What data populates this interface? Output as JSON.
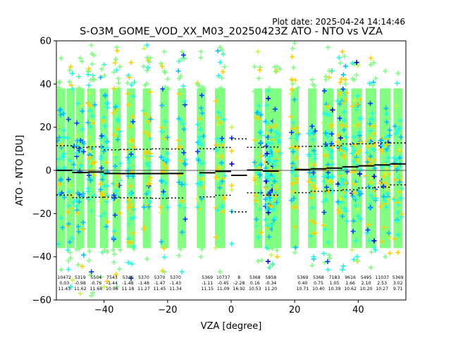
{
  "chart_data": {
    "type": "scatter",
    "plot_date": "Plot date: 2025-04-24 14:14:46",
    "title": "S-O3M_GOME_VOD_XX_M03_20250423Z ATO - NTO vs VZA",
    "xlabel": "VZA [degree]",
    "ylabel": "ATO - NTO [DU]",
    "xlim": [
      -55,
      55
    ],
    "ylim": [
      -60,
      60
    ],
    "xticks": [
      -40,
      -20,
      0,
      20,
      40
    ],
    "yticks": [
      -60,
      -40,
      -20,
      0,
      20,
      40,
      60
    ],
    "xtick_labels": [
      "−40",
      "−20",
      "0",
      "20",
      "40"
    ],
    "ytick_labels": [
      "−60",
      "−40",
      "−20",
      "0",
      "20",
      "40",
      "60"
    ],
    "marker": "+",
    "marker_colors": [
      "#80ff80",
      "#19ffe5",
      "#00c0ff",
      "#ffd000",
      "#c0ff40",
      "#0040ff",
      "#0000d0",
      "#40ffb0",
      "#ffb000"
    ],
    "columns": [
      {
        "vza": -53.5,
        "width": 2.6,
        "top": 52,
        "bottom": -46,
        "mix": [
          0.7,
          0.1,
          0.12,
          0.02,
          0.02,
          0.02,
          0.0,
          0.02,
          0.0
        ]
      },
      {
        "vza": -50.5,
        "width": 2.6,
        "top": 48,
        "bottom": -54,
        "mix": [
          0.7,
          0.1,
          0.06,
          0.05,
          0.03,
          0.04,
          0.0,
          0.02,
          0.0
        ]
      },
      {
        "vza": -47.5,
        "width": 2.6,
        "top": 52,
        "bottom": -57,
        "mix": [
          0.62,
          0.1,
          0.08,
          0.06,
          0.03,
          0.08,
          0.01,
          0.02,
          0.0
        ]
      },
      {
        "vza": -44.0,
        "width": 2.6,
        "top": 58,
        "bottom": -58,
        "mix": [
          0.62,
          0.1,
          0.08,
          0.12,
          0.04,
          0.02,
          0.0,
          0.02,
          0.0
        ]
      },
      {
        "vza": -40.0,
        "width": 2.6,
        "top": 49,
        "bottom": -54,
        "mix": [
          0.62,
          0.12,
          0.06,
          0.12,
          0.03,
          0.02,
          0.0,
          0.03,
          0.0
        ]
      },
      {
        "vza": -36.0,
        "width": 2.6,
        "top": 57,
        "bottom": -54,
        "mix": [
          0.62,
          0.12,
          0.05,
          0.14,
          0.03,
          0.02,
          0.0,
          0.02,
          0.0
        ]
      },
      {
        "vza": -31.5,
        "width": 2.6,
        "top": 50,
        "bottom": -50,
        "mix": [
          0.62,
          0.1,
          0.06,
          0.15,
          0.02,
          0.03,
          0.0,
          0.02,
          0.0
        ]
      },
      {
        "vza": -26.5,
        "width": 2.6,
        "top": 58,
        "bottom": -41,
        "mix": [
          0.64,
          0.08,
          0.06,
          0.16,
          0.02,
          0.02,
          0.0,
          0.02,
          0.0
        ]
      },
      {
        "vza": -21.0,
        "width": 2.6,
        "top": 55,
        "bottom": -47,
        "mix": [
          0.68,
          0.1,
          0.06,
          0.1,
          0.02,
          0.02,
          0.0,
          0.02,
          0.0
        ]
      },
      {
        "vza": -15.5,
        "width": 2.6,
        "top": 55,
        "bottom": -47,
        "mix": [
          0.68,
          0.1,
          0.06,
          0.1,
          0.02,
          0.02,
          0.0,
          0.02,
          0.0
        ]
      },
      {
        "vza": -9.5,
        "width": 2.6,
        "top": 55,
        "bottom": -40,
        "mix": [
          0.72,
          0.1,
          0.08,
          0.05,
          0.02,
          0.01,
          0.0,
          0.02,
          0.0
        ]
      },
      {
        "vza": -3.5,
        "width": 3.2,
        "top": 57,
        "bottom": -47,
        "mix": [
          0.62,
          0.1,
          0.06,
          0.14,
          0.04,
          0.01,
          0.0,
          0.03,
          0.0
        ]
      },
      {
        "vza": 8.5,
        "width": 2.6,
        "top": 55,
        "bottom": -42,
        "mix": [
          0.62,
          0.12,
          0.08,
          0.13,
          0.02,
          0.01,
          0.0,
          0.02,
          0.0
        ]
      },
      {
        "vza": 12.0,
        "width": 2.8,
        "top": 38,
        "bottom": -45,
        "mix": [
          0.3,
          0.3,
          0.12,
          0.1,
          0.03,
          0.06,
          0.05,
          0.04,
          0.0
        ]
      },
      {
        "vza": 14.5,
        "width": 2.6,
        "top": 48,
        "bottom": -40,
        "mix": [
          0.68,
          0.1,
          0.06,
          0.1,
          0.02,
          0.02,
          0.0,
          0.02,
          0.0
        ]
      },
      {
        "vza": 20.0,
        "width": 2.6,
        "top": 59,
        "bottom": -38,
        "mix": [
          0.62,
          0.1,
          0.05,
          0.17,
          0.03,
          0.01,
          0.0,
          0.02,
          0.0
        ]
      },
      {
        "vza": 25.5,
        "width": 2.6,
        "top": 42,
        "bottom": -44,
        "mix": [
          0.62,
          0.12,
          0.08,
          0.12,
          0.02,
          0.02,
          0.0,
          0.02,
          0.0
        ]
      },
      {
        "vza": 30.5,
        "width": 3.4,
        "top": 57,
        "bottom": -46,
        "mix": [
          0.4,
          0.18,
          0.1,
          0.2,
          0.03,
          0.05,
          0.02,
          0.02,
          0.0
        ]
      },
      {
        "vza": 35.0,
        "width": 3.4,
        "top": 55,
        "bottom": -46,
        "mix": [
          0.4,
          0.2,
          0.1,
          0.18,
          0.03,
          0.05,
          0.02,
          0.02,
          0.0
        ]
      },
      {
        "vza": 39.5,
        "width": 3.4,
        "top": 50,
        "bottom": -42,
        "mix": [
          0.42,
          0.2,
          0.1,
          0.16,
          0.03,
          0.05,
          0.02,
          0.02,
          0.0
        ]
      },
      {
        "vza": 44.0,
        "width": 3.4,
        "top": 52,
        "bottom": -45,
        "mix": [
          0.42,
          0.2,
          0.1,
          0.16,
          0.04,
          0.04,
          0.02,
          0.02,
          0.0
        ]
      },
      {
        "vza": 48.5,
        "width": 3.4,
        "top": 46,
        "bottom": -40,
        "mix": [
          0.46,
          0.18,
          0.1,
          0.16,
          0.04,
          0.03,
          0.01,
          0.02,
          0.0
        ]
      },
      {
        "vza": 52.5,
        "width": 2.8,
        "top": 45,
        "bottom": -38,
        "mix": [
          0.46,
          0.2,
          0.1,
          0.16,
          0.04,
          0.02,
          0.0,
          0.02,
          0.0
        ]
      }
    ],
    "isolated_points": [
      {
        "x": 0.2,
        "y": 20,
        "color": "#c0ff40"
      },
      {
        "x": 0.2,
        "y": 15,
        "color": "#0040ff"
      },
      {
        "x": 0.2,
        "y": 9,
        "color": "#ffd000"
      },
      {
        "x": 0.2,
        "y": 3,
        "color": "#0000d0"
      },
      {
        "x": 0.2,
        "y": -7,
        "color": "#ffd000"
      },
      {
        "x": 0.2,
        "y": -9,
        "color": "#c0ff40"
      },
      {
        "x": 0.2,
        "y": -19,
        "color": "#00c0ff"
      },
      {
        "x": 0.2,
        "y": -34,
        "color": "#19ffe5"
      }
    ],
    "bins": [
      {
        "x0": -55,
        "x1": -50,
        "count": 10472,
        "mean": 0.03,
        "std": 11.43
      },
      {
        "x0": -50,
        "x1": -45,
        "count": 5319,
        "mean": -0.98,
        "std": 11.62
      },
      {
        "x0": -45,
        "x1": -40,
        "count": 5504,
        "mean": -0.76,
        "std": 11.68
      },
      {
        "x0": -40,
        "x1": -35,
        "count": 7543,
        "mean": -1.44,
        "std": 10.96
      },
      {
        "x0": -35,
        "x1": -30,
        "count": 5346,
        "mean": -1.48,
        "std": 11.18
      },
      {
        "x0": -30,
        "x1": -25,
        "count": 5370,
        "mean": -1.48,
        "std": 11.27
      },
      {
        "x0": -25,
        "x1": -20,
        "count": 5370,
        "mean": -1.47,
        "std": 11.45
      },
      {
        "x0": -20,
        "x1": -15,
        "count": 5370,
        "mean": -1.43,
        "std": 11.34
      },
      {
        "x0": -10,
        "x1": -5,
        "count": 5369,
        "mean": -1.11,
        "std": 11.15
      },
      {
        "x0": -5,
        "x1": 0,
        "count": 10737,
        "mean": -0.45,
        "std": 11.09
      },
      {
        "x0": 0,
        "x1": 5,
        "count": 8,
        "mean": -2.28,
        "std": 16.92
      },
      {
        "x0": 5,
        "x1": 10,
        "count": 5368,
        "mean": 0.16,
        "std": 10.53
      },
      {
        "x0": 10,
        "x1": 15,
        "count": 5858,
        "mean": -0.34,
        "std": 11.2
      },
      {
        "x0": 20,
        "x1": 25,
        "count": 5369,
        "mean": 0.4,
        "std": 10.71
      },
      {
        "x0": 25,
        "x1": 30,
        "count": 5368,
        "mean": 0.75,
        "std": 10.4
      },
      {
        "x0": 30,
        "x1": 35,
        "count": 7183,
        "mean": 1.05,
        "std": 10.39
      },
      {
        "x0": 35,
        "x1": 40,
        "count": 9616,
        "mean": 1.66,
        "std": 10.62
      },
      {
        "x0": 40,
        "x1": 45,
        "count": 5495,
        "mean": 2.1,
        "std": 10.2
      },
      {
        "x0": 45,
        "x1": 50,
        "count": 11037,
        "mean": 2.53,
        "std": 10.27
      },
      {
        "x0": 50,
        "x1": 55,
        "count": 5369,
        "mean": 3.02,
        "std": 9.71
      }
    ],
    "bin_labels": [
      {
        "count": "10472",
        "mean": "0.03",
        "std": "11.43"
      },
      {
        "count": "5319",
        "mean": "-0.98",
        "std": "11.62"
      },
      {
        "count": "5504",
        "mean": "-0.76",
        "std": "11.68"
      },
      {
        "count": "7543",
        "mean": "-1.44",
        "std": "10.96"
      },
      {
        "count": "5346",
        "mean": "-1.48",
        "std": "11.18"
      },
      {
        "count": "5370",
        "mean": "-1.48",
        "std": "11.27"
      },
      {
        "count": "5370",
        "mean": "-1.47",
        "std": "11.45"
      },
      {
        "count": "5370",
        "mean": "-1.43",
        "std": "11.34"
      },
      {
        "count": "5369",
        "mean": "-1.11",
        "std": "11.15"
      },
      {
        "count": "10737",
        "mean": "-0.45",
        "std": "11.09"
      },
      {
        "count": "8",
        "mean": "-2.28",
        "std": "16.92"
      },
      {
        "count": "5368",
        "mean": "0.16",
        "std": "10.53"
      },
      {
        "count": "5858",
        "mean": "-0.34",
        "std": "11.20"
      },
      {
        "count": "5369",
        "mean": "0.40",
        "std": "10.71"
      },
      {
        "count": "5368",
        "mean": "0.75",
        "std": "10.40"
      },
      {
        "count": "7183",
        "mean": "1.05",
        "std": "10.39"
      },
      {
        "count": "9616",
        "mean": "1.66",
        "std": "10.62"
      },
      {
        "count": "5495",
        "mean": "2.10",
        "std": "10.20"
      },
      {
        "count": "11037",
        "mean": "2.53",
        "std": "10.27"
      },
      {
        "count": "5369",
        "mean": "3.02",
        "std": "9.71"
      }
    ],
    "zero_line": 0,
    "grid": false,
    "legend": "none"
  }
}
